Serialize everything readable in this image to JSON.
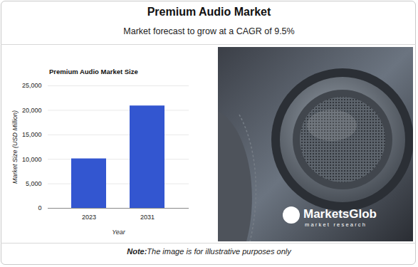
{
  "chart_data": {
    "type": "bar",
    "title": "Premium Audio Market",
    "subtitle": "Market forecast to grow at a CAGR of 9.5%",
    "chart_title": "Premium Audio Market Size",
    "x_label": "Year",
    "y_label": "Market Size (USD Million)",
    "categories": [
      "2023",
      "2031"
    ],
    "values": [
      10100,
      20900
    ],
    "color": "#3356d0",
    "ylim": [
      0,
      25000
    ],
    "yticks": [
      0,
      {
        "value": 5000,
        "label": "5,000"
      },
      {
        "value": 10000,
        "label": "10,000"
      },
      {
        "value": 15000,
        "label": "15,000"
      },
      {
        "value": 20000,
        "label": "20,000"
      },
      {
        "value": 25000,
        "label": "25,000"
      }
    ],
    "grid": true,
    "logo": {
      "name": "MarketsGlob",
      "tagline": "market research"
    },
    "note": {
      "prefix": "Note:",
      "text": "The image is for illustrative purposes only"
    }
  }
}
